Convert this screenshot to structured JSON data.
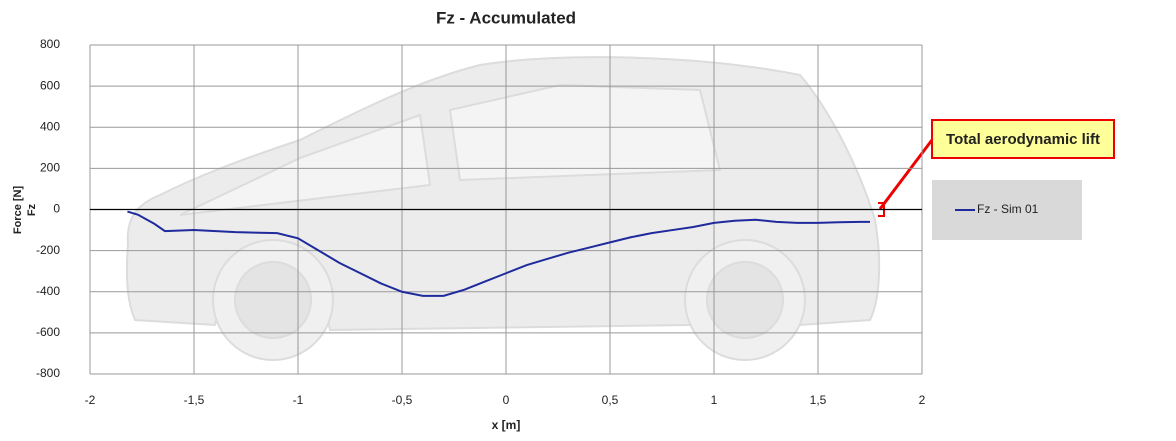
{
  "chart_data": {
    "type": "line",
    "title": "Fz - Accumulated",
    "x_label": "x [m]",
    "y_label": "Force [N]",
    "y_sublabel": "Fz",
    "annotation": "Total aerodynamic lift",
    "x": [
      -1.82,
      -1.77,
      -1.69,
      -1.64,
      -1.5,
      -1.3,
      -1.1,
      -1.0,
      -0.9,
      -0.8,
      -0.7,
      -0.6,
      -0.5,
      -0.4,
      -0.3,
      -0.2,
      -0.1,
      0,
      0.1,
      0.2,
      0.3,
      0.4,
      0.5,
      0.6,
      0.7,
      0.8,
      0.9,
      1.0,
      1.1,
      1.2,
      1.3,
      1.4,
      1.5,
      1.6,
      1.7,
      1.75
    ],
    "series": [
      {
        "name": "Fz - Sim 01",
        "color": "#1f2a9c",
        "values": [
          -10,
          -25,
          -70,
          -105,
          -100,
          -110,
          -115,
          -140,
          -200,
          -260,
          -310,
          -360,
          -400,
          -420,
          -420,
          -390,
          -350,
          -310,
          -270,
          -240,
          -210,
          -185,
          -160,
          -135,
          -115,
          -100,
          -85,
          -65,
          -55,
          -50,
          -60,
          -65,
          -65,
          -62,
          -60,
          -60
        ]
      }
    ],
    "xlim": [
      -2,
      2
    ],
    "xticks": [
      -2,
      {
        "value": -1.5,
        "label": "-1,5"
      },
      -1,
      {
        "value": -0.5,
        "label": "-0,5"
      },
      0,
      {
        "value": 0.5,
        "label": "0,5"
      },
      1,
      {
        "value": 1.5,
        "label": "1,5"
      },
      2
    ],
    "ylim": [
      -800,
      800
    ],
    "yticks": [
      800,
      600,
      400,
      200,
      0,
      -200,
      -400,
      -600,
      -800
    ],
    "grid": true,
    "legend": "right"
  }
}
